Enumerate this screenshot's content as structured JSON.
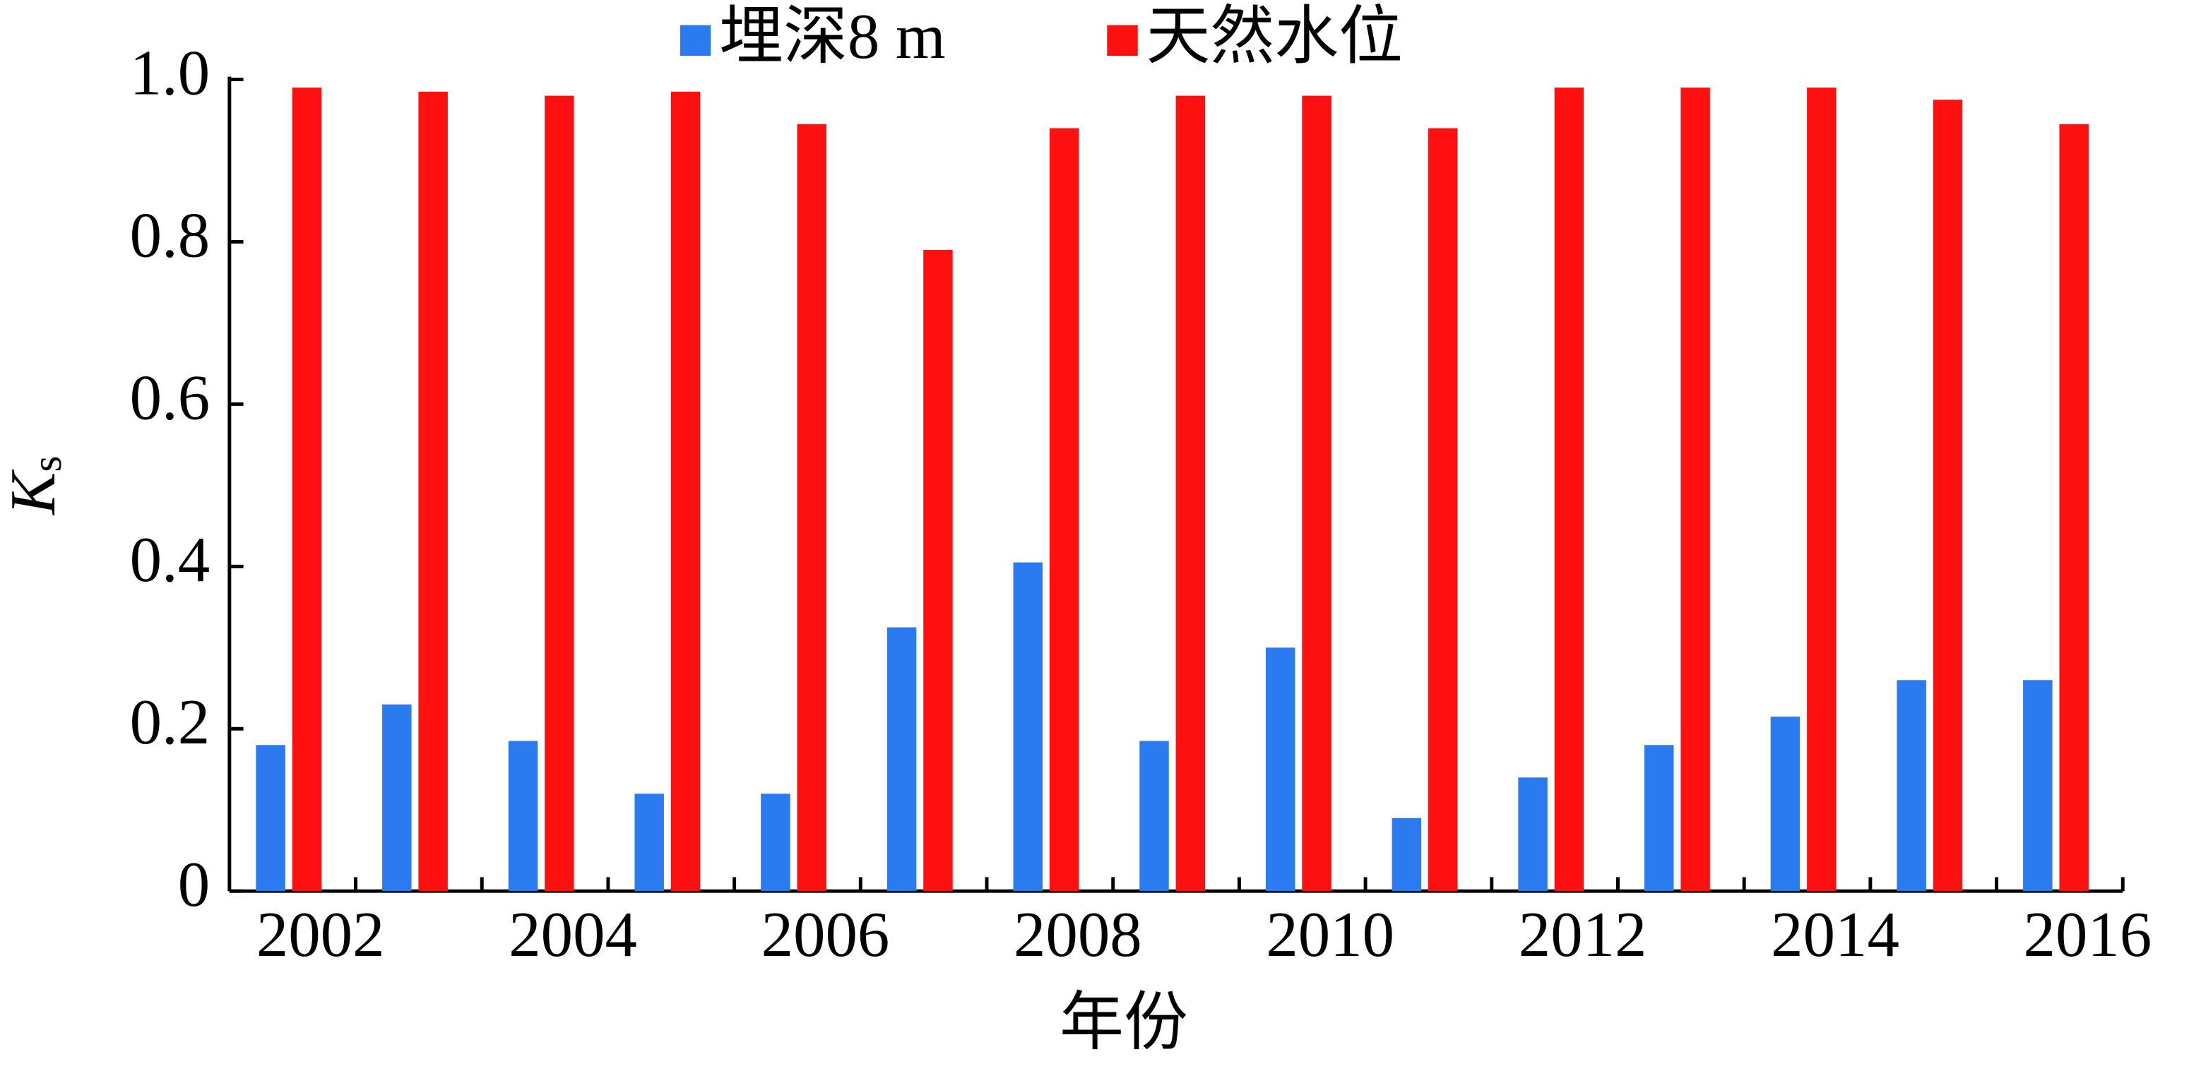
{
  "chart_data": {
    "type": "bar",
    "x_label": "年份",
    "y_label": "K",
    "y_label_sub": "s",
    "categories": [
      "2002",
      null,
      "2004",
      null,
      "2006",
      null,
      "2008",
      null,
      "2010",
      null,
      "2012",
      null,
      "2014",
      null,
      "2016"
    ],
    "series": [
      {
        "name": "埋深8 m",
        "color": "#2b7bf0",
        "values": [
          0.18,
          0.23,
          0.185,
          0.12,
          0.12,
          0.325,
          0.405,
          0.185,
          0.3,
          0.09,
          0.14,
          0.18,
          0.215,
          0.26,
          0.26
        ]
      },
      {
        "name": "天然水位",
        "color": "#ff1010",
        "values": [
          0.99,
          0.985,
          0.98,
          0.985,
          0.945,
          0.79,
          0.94,
          0.98,
          0.98,
          0.94,
          0.99,
          0.99,
          0.99,
          0.975,
          0.945
        ]
      }
    ],
    "ylim": [
      0,
      1.0
    ],
    "yticks": [
      0,
      0.2,
      0.4,
      0.6,
      0.8,
      {
        "value": 1.0,
        "label": "1.0"
      }
    ],
    "legend": "top"
  }
}
